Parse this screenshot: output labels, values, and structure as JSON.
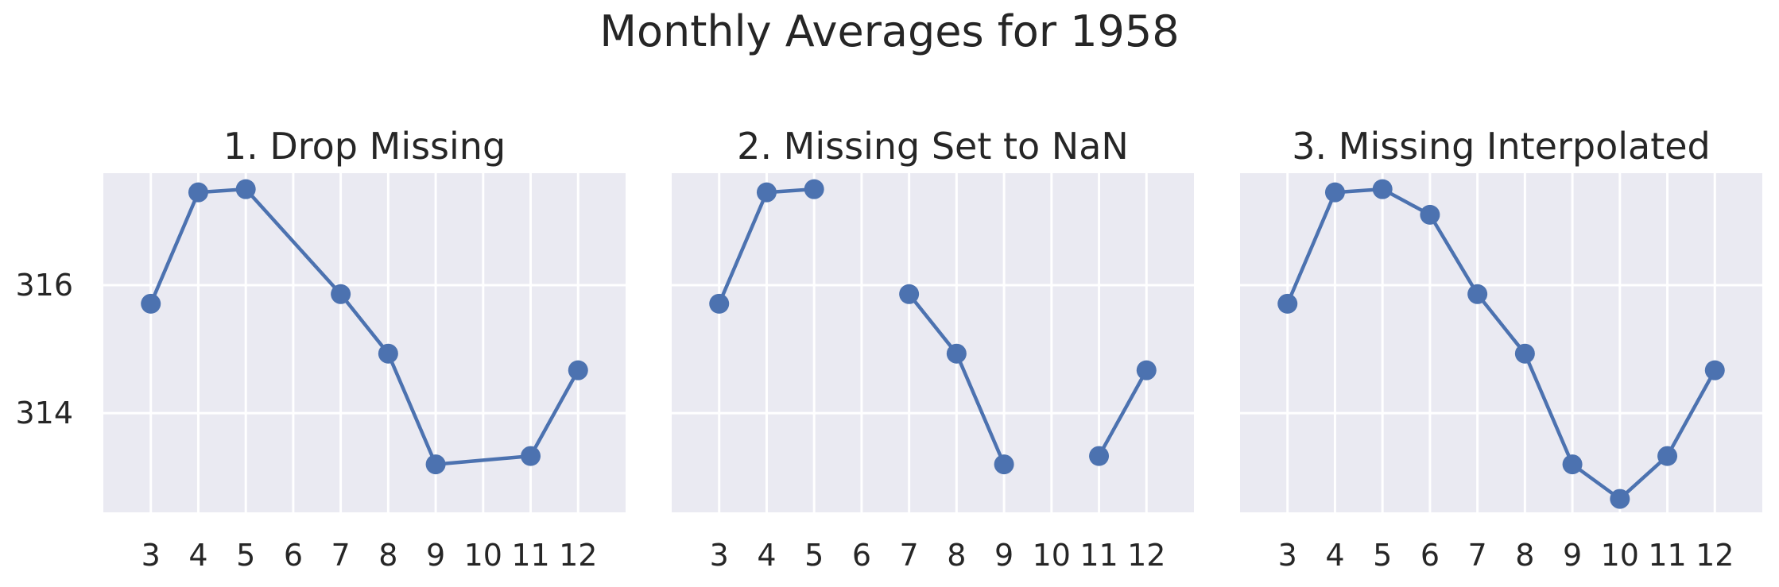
{
  "figure": {
    "suptitle": "Monthly Averages for 1958"
  },
  "colors": {
    "background": "#eaeaf2",
    "grid": "#ffffff",
    "line": "#4c72b0",
    "text": "#262626"
  },
  "chart_data": [
    {
      "type": "line",
      "title": "1. Drop Missing",
      "x_ticks": [
        3,
        4,
        5,
        6,
        7,
        8,
        9,
        10,
        11,
        12
      ],
      "y_ticks": [
        314,
        316
      ],
      "xlim": [
        2,
        13
      ],
      "ylim": [
        312.45,
        317.75
      ],
      "x": [
        3,
        4,
        5,
        7,
        8,
        9,
        11,
        12
      ],
      "y": [
        315.71,
        317.45,
        317.5,
        315.86,
        314.93,
        313.2,
        313.33,
        314.67
      ],
      "markers": true,
      "grid": true
    },
    {
      "type": "line",
      "title": "2. Missing Set to NaN",
      "x_ticks": [
        3,
        4,
        5,
        6,
        7,
        8,
        9,
        10,
        11,
        12
      ],
      "y_ticks": [
        314,
        316
      ],
      "xlim": [
        2,
        13
      ],
      "ylim": [
        312.45,
        317.75
      ],
      "x": [
        3,
        4,
        5,
        6,
        7,
        8,
        9,
        10,
        11,
        12
      ],
      "y": [
        315.71,
        317.45,
        317.5,
        null,
        315.86,
        314.93,
        313.2,
        null,
        313.33,
        314.67
      ],
      "markers": true,
      "grid": true
    },
    {
      "type": "line",
      "title": "3. Missing Interpolated",
      "x_ticks": [
        3,
        4,
        5,
        6,
        7,
        8,
        9,
        10,
        11,
        12
      ],
      "y_ticks": [
        314,
        316
      ],
      "xlim": [
        2,
        13
      ],
      "ylim": [
        312.45,
        317.75
      ],
      "x": [
        3,
        4,
        5,
        6,
        7,
        8,
        9,
        10,
        11,
        12
      ],
      "y": [
        315.71,
        317.45,
        317.5,
        317.1,
        315.86,
        314.93,
        313.2,
        312.66,
        313.33,
        314.67
      ],
      "markers": true,
      "grid": true
    }
  ]
}
